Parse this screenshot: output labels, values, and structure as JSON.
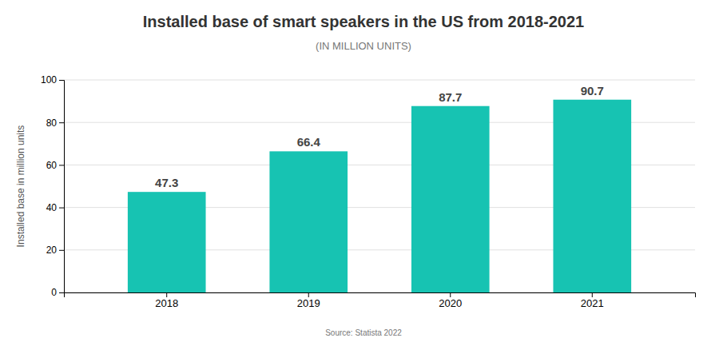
{
  "chart_data": {
    "type": "bar",
    "title": "Installed base of smart speakers in the US from 2018-2021",
    "subtitle": "(IN MILLION UNITS)",
    "ylabel": "Installed base in million units",
    "source": "Source: Statista 2022",
    "categories": [
      "2018",
      "2019",
      "2020",
      "2021"
    ],
    "values": [
      47.3,
      66.4,
      87.7,
      90.7
    ],
    "color": "#17C3B2",
    "ylim": [
      0,
      100
    ],
    "yticks": [
      0,
      20,
      40,
      60,
      80,
      100
    ],
    "grid": true,
    "data_labels": true
  }
}
